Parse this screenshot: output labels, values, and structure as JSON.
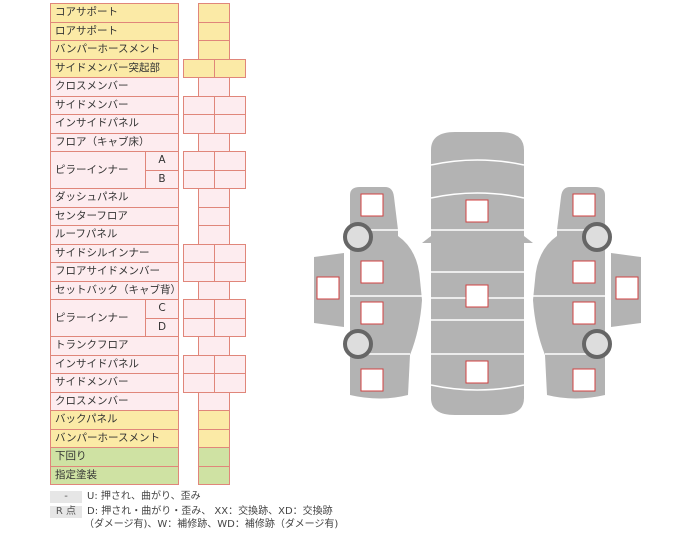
{
  "rows": [
    {
      "label": "コアサポート",
      "color": "yellow",
      "cells": 1
    },
    {
      "label": "ロアサポート",
      "color": "yellow",
      "cells": 1
    },
    {
      "label": "バンパーホースメント",
      "color": "yellow",
      "cells": 1
    },
    {
      "label": "サイドメンバー突起部",
      "color": "yellow",
      "cells": 2
    },
    {
      "label": "クロスメンバー",
      "color": "pink",
      "cells": 1
    },
    {
      "label": "サイドメンバー",
      "color": "pink",
      "cells": 2
    },
    {
      "label": "インサイドパネル",
      "color": "pink",
      "cells": 2
    },
    {
      "label": "フロア（キャブ床）",
      "color": "pink",
      "cells": 1
    },
    {
      "label": "ピラーインナー",
      "sub": "A",
      "color": "pink",
      "cells": 2,
      "group_start": true
    },
    {
      "label": "",
      "sub": "B",
      "color": "pink",
      "cells": 2
    },
    {
      "label": "ダッシュパネル",
      "color": "pink",
      "cells": 1
    },
    {
      "label": "センターフロア",
      "color": "pink",
      "cells": 1
    },
    {
      "label": "ルーフパネル",
      "color": "pink",
      "cells": 1
    },
    {
      "label": "サイドシルインナー",
      "color": "pink",
      "cells": 2
    },
    {
      "label": "フロアサイドメンバー",
      "color": "pink",
      "cells": 2
    },
    {
      "label": "セットバック（キャブ背）",
      "color": "pink",
      "cells": 1
    },
    {
      "label": "ピラーインナー",
      "sub": "C",
      "color": "pink",
      "cells": 2,
      "group_start": true
    },
    {
      "label": "",
      "sub": "D",
      "color": "pink",
      "cells": 2
    },
    {
      "label": "トランクフロア",
      "color": "pink",
      "cells": 1
    },
    {
      "label": "インサイドパネル",
      "color": "pink",
      "cells": 2
    },
    {
      "label": "サイドメンバー",
      "color": "pink",
      "cells": 2
    },
    {
      "label": "クロスメンバー",
      "color": "pink",
      "cells": 1
    },
    {
      "label": "バックパネル",
      "color": "yellow",
      "cells": 1
    },
    {
      "label": "バンパーホースメント",
      "color": "yellow",
      "cells": 1
    },
    {
      "label": "下回り",
      "color": "green",
      "cells": 1
    },
    {
      "label": "指定塗装",
      "color": "green",
      "cells": 1
    }
  ],
  "legend": [
    {
      "key": "-",
      "text": "U: 押され、曲がり、歪み"
    },
    {
      "key": "R 点",
      "text": "D: 押され・曲がり・歪み、 XX：交換跡、XD：交換跡",
      "text2": "（ダメージ有)、W：補修跡、WD：補修跡（ダメージ有)"
    }
  ],
  "colors": {
    "yellow": "#fbeaa6",
    "pink": "#fdecef",
    "green": "#cfe2a3",
    "car": "#b3b3b3",
    "marker": "#d04040"
  }
}
